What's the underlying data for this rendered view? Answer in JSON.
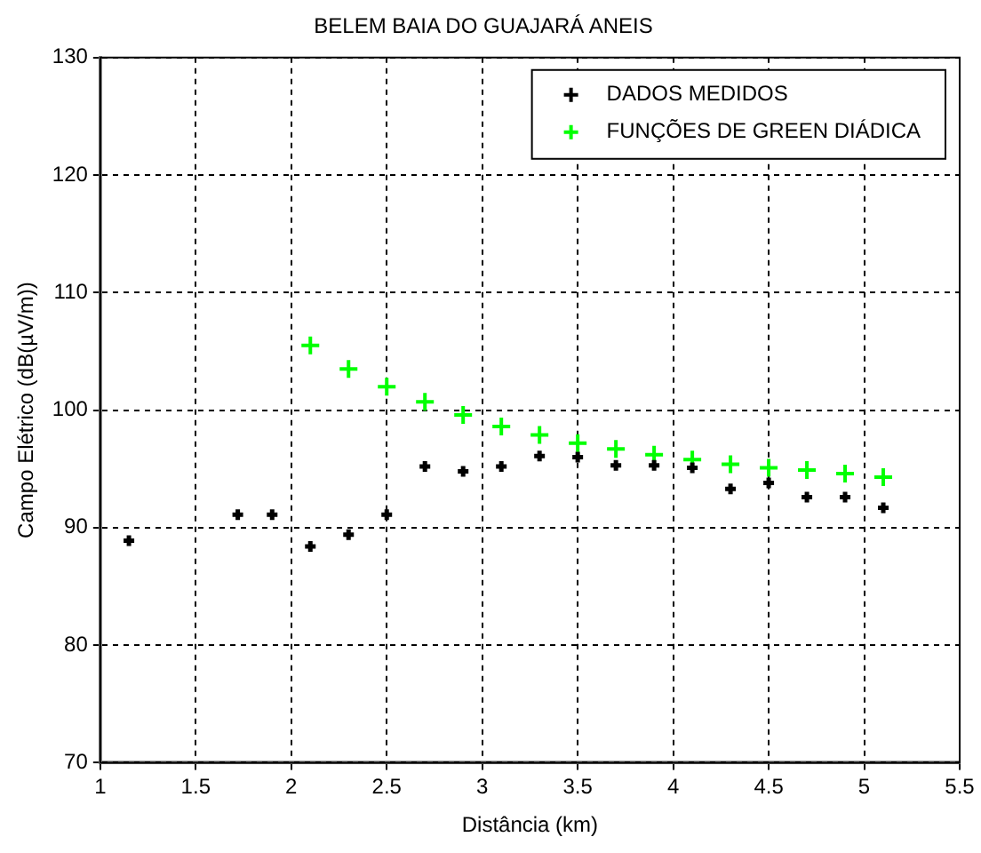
{
  "chart_data": {
    "type": "scatter",
    "title": "BELEM BAIA DO GUAJARÁ ANEIS",
    "xlabel": "Distância (km)",
    "ylabel": "Campo Elétrico (dB(µV/m))",
    "xlim": [
      1,
      5.5
    ],
    "xticks": [
      1,
      1.5,
      2,
      2.5,
      3,
      3.5,
      4,
      4.5,
      5,
      5.5
    ],
    "ylim": [
      70,
      130
    ],
    "yticks": [
      70,
      80,
      90,
      100,
      110,
      120,
      130
    ],
    "grid": true,
    "legend": "top right",
    "marker": "cross",
    "series": [
      {
        "name": "DADOS MEDIDOS",
        "color": "#000000",
        "x": [
          1.15,
          1.72,
          1.9,
          2.1,
          2.3,
          2.5,
          2.7,
          2.9,
          3.1,
          3.3,
          3.5,
          3.7,
          3.9,
          4.1,
          4.3,
          4.5,
          4.7,
          4.9,
          5.1
        ],
        "values": [
          88.9,
          91.1,
          91.1,
          88.4,
          89.4,
          91.1,
          95.2,
          94.8,
          95.2,
          96.1,
          96.0,
          95.3,
          95.3,
          95.1,
          93.3,
          93.8,
          92.6,
          92.6,
          91.7
        ]
      },
      {
        "name": "FUNÇÕES DE GREEN DIÁDICA",
        "color": "#00ff00",
        "x": [
          2.1,
          2.3,
          2.5,
          2.7,
          2.9,
          3.1,
          3.3,
          3.5,
          3.7,
          3.9,
          4.1,
          4.3,
          4.5,
          4.7,
          4.9,
          5.1
        ],
        "values": [
          105.5,
          103.5,
          102,
          100.7,
          99.6,
          98.6,
          97.9,
          97.2,
          96.7,
          96.2,
          95.8,
          95.4,
          95.1,
          94.9,
          94.6,
          94.3
        ]
      }
    ]
  }
}
